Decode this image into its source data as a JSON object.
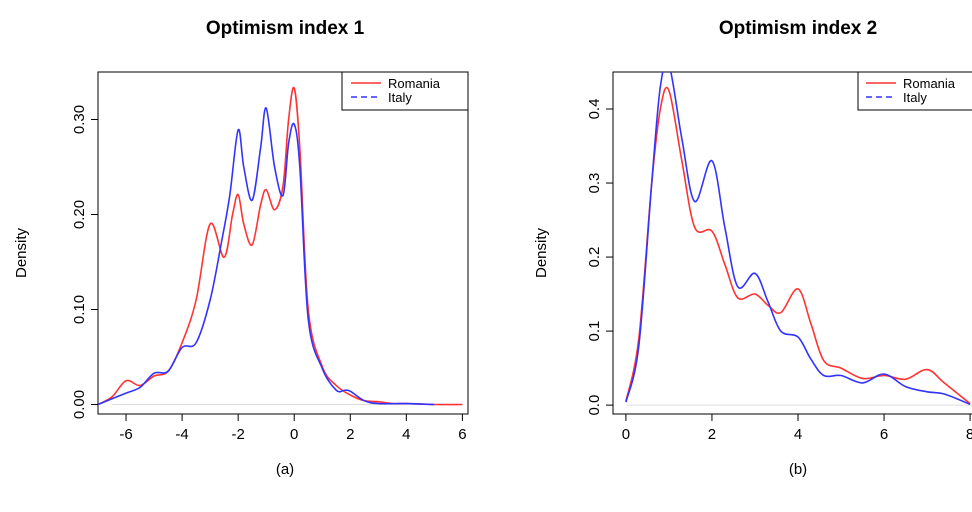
{
  "charts": [
    {
      "title": "Optimism index 1",
      "ylabel": "Density",
      "caption": "(a)",
      "legend": [
        "Romania",
        "Italy"
      ]
    },
    {
      "title": "Optimism index 2",
      "ylabel": "Density",
      "caption": "(b)",
      "legend": [
        "Romania",
        "Italy"
      ]
    }
  ],
  "chart_data": [
    {
      "type": "line",
      "title": "Optimism index 1",
      "xlabel": "",
      "ylabel": "Density",
      "xlim": [
        -7,
        6.2
      ],
      "ylim": [
        -0.01,
        0.35
      ],
      "xticks": [
        -6,
        -4,
        -2,
        0,
        2,
        4,
        6
      ],
      "xtick_labels": [
        "-6",
        "-4",
        "-2",
        "0",
        "2",
        "4",
        "6"
      ],
      "yticks": [
        0.0,
        0.1,
        0.2,
        0.3
      ],
      "ytick_labels": [
        "0.00",
        "0.10",
        "0.20",
        "0.30"
      ],
      "grid": false,
      "legend_position": "top-right",
      "series": [
        {
          "name": "Romania",
          "color": "#ff3333",
          "dash": "solid",
          "x": [
            -7.0,
            -6.5,
            -6.0,
            -5.5,
            -5.0,
            -4.5,
            -4.0,
            -3.5,
            -3.0,
            -2.5,
            -2.2,
            -2.0,
            -1.8,
            -1.5,
            -1.2,
            -1.0,
            -0.7,
            -0.4,
            -0.2,
            0.0,
            0.2,
            0.5,
            1.0,
            1.5,
            2.0,
            2.5,
            3.0,
            3.5,
            4.0,
            5.0,
            6.0
          ],
          "y": [
            0.0,
            0.008,
            0.025,
            0.02,
            0.03,
            0.035,
            0.065,
            0.11,
            0.19,
            0.155,
            0.2,
            0.221,
            0.19,
            0.168,
            0.21,
            0.226,
            0.205,
            0.23,
            0.3,
            0.333,
            0.27,
            0.1,
            0.04,
            0.02,
            0.01,
            0.004,
            0.003,
            0.001,
            0.001,
            0.0,
            0.0
          ]
        },
        {
          "name": "Italy",
          "color": "#3333ff",
          "dash": "dashed",
          "x": [
            -7.0,
            -6.5,
            -6.0,
            -5.5,
            -5.0,
            -4.5,
            -4.0,
            -3.5,
            -3.0,
            -2.6,
            -2.3,
            -2.0,
            -1.8,
            -1.5,
            -1.2,
            -1.0,
            -0.7,
            -0.4,
            -0.2,
            0.0,
            0.2,
            0.5,
            1.0,
            1.5,
            1.8,
            2.0,
            2.5,
            3.0,
            4.0,
            5.0
          ],
          "y": [
            0.0,
            0.006,
            0.012,
            0.018,
            0.033,
            0.035,
            0.06,
            0.065,
            0.11,
            0.17,
            0.22,
            0.289,
            0.25,
            0.215,
            0.27,
            0.312,
            0.25,
            0.22,
            0.275,
            0.295,
            0.25,
            0.09,
            0.038,
            0.015,
            0.015,
            0.014,
            0.004,
            0.001,
            0.001,
            0.0
          ]
        }
      ]
    },
    {
      "type": "line",
      "title": "Optimism index 2",
      "xlabel": "",
      "ylabel": "Density",
      "xlim": [
        -0.3,
        8.3
      ],
      "ylim": [
        -0.012,
        0.45
      ],
      "xticks": [
        0,
        2,
        4,
        6,
        8
      ],
      "xtick_labels": [
        "0",
        "2",
        "4",
        "6",
        "8"
      ],
      "yticks": [
        0.0,
        0.1,
        0.2,
        0.3,
        0.4
      ],
      "ytick_labels": [
        "0.0",
        "0.1",
        "0.2",
        "0.3",
        "0.4"
      ],
      "grid": false,
      "legend_position": "top-right",
      "series": [
        {
          "name": "Romania",
          "color": "#ff3333",
          "dash": "solid",
          "x": [
            0.0,
            0.3,
            0.6,
            0.8,
            1.0,
            1.3,
            1.6,
            2.0,
            2.3,
            2.6,
            3.0,
            3.3,
            3.6,
            4.0,
            4.3,
            4.6,
            5.0,
            5.5,
            6.0,
            6.5,
            7.0,
            7.4,
            8.0
          ],
          "y": [
            0.005,
            0.09,
            0.3,
            0.4,
            0.425,
            0.33,
            0.24,
            0.235,
            0.19,
            0.145,
            0.15,
            0.135,
            0.125,
            0.157,
            0.11,
            0.06,
            0.05,
            0.036,
            0.04,
            0.035,
            0.048,
            0.03,
            0.002
          ]
        },
        {
          "name": "Italy",
          "color": "#3333ff",
          "dash": "dashed",
          "x": [
            0.0,
            0.3,
            0.6,
            0.8,
            1.0,
            1.3,
            1.6,
            2.0,
            2.3,
            2.6,
            3.0,
            3.3,
            3.6,
            4.0,
            4.3,
            4.6,
            5.0,
            5.5,
            6.0,
            6.5,
            7.0,
            7.4,
            8.0
          ],
          "y": [
            0.004,
            0.08,
            0.3,
            0.43,
            0.46,
            0.36,
            0.275,
            0.33,
            0.24,
            0.16,
            0.178,
            0.14,
            0.1,
            0.092,
            0.062,
            0.04,
            0.04,
            0.03,
            0.042,
            0.025,
            0.018,
            0.015,
            0.001
          ]
        }
      ]
    }
  ]
}
